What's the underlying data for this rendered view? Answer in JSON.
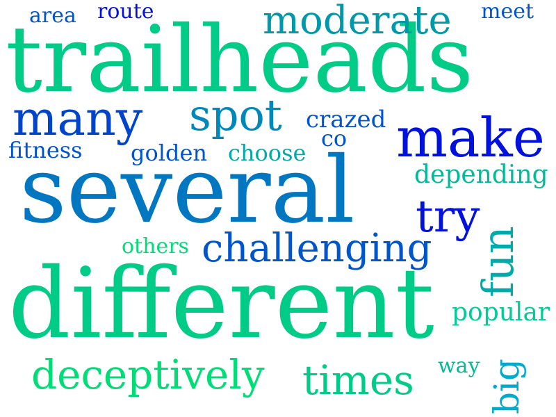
{
  "words": [
    {
      "text": "trailheads",
      "color": "#00cc88"
    },
    {
      "text": "several",
      "color": "#0077c0"
    },
    {
      "text": "different",
      "color": "#00cc88"
    },
    {
      "text": "make",
      "color": "#0011dd"
    },
    {
      "text": "many",
      "color": "#0044cc"
    },
    {
      "text": "spot",
      "color": "#0088bb"
    },
    {
      "text": "moderate",
      "color": "#0099aa"
    },
    {
      "text": "challenging",
      "color": "#0055cc"
    },
    {
      "text": "deceptively",
      "color": "#00dd77"
    },
    {
      "text": "times",
      "color": "#00cc88"
    },
    {
      "text": "try",
      "color": "#0011dd"
    },
    {
      "text": "fun",
      "color": "#00aaaa"
    },
    {
      "text": "big",
      "color": "#00aacc"
    },
    {
      "text": "popular",
      "color": "#00cc99"
    },
    {
      "text": "depending",
      "color": "#00bb99"
    },
    {
      "text": "crazed",
      "color": "#0055cc"
    },
    {
      "text": "co",
      "color": "#0055cc"
    },
    {
      "text": "golden",
      "color": "#0055cc"
    },
    {
      "text": "choose",
      "color": "#00aaaa"
    },
    {
      "text": "fitness",
      "color": "#0055cc"
    },
    {
      "text": "others",
      "color": "#00dd77"
    },
    {
      "text": "area",
      "color": "#0055cc"
    },
    {
      "text": "route",
      "color": "#0011dd"
    },
    {
      "text": "meet",
      "color": "#0055cc"
    },
    {
      "text": "way",
      "color": "#00bb99"
    }
  ]
}
